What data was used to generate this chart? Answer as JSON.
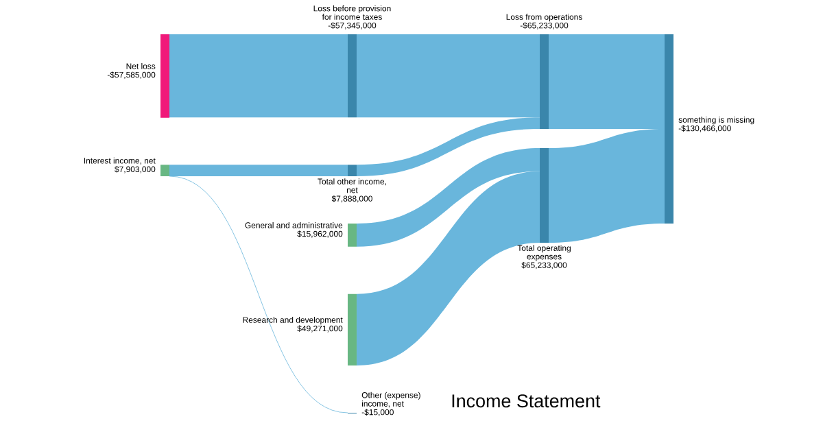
{
  "chart_data": {
    "type": "other",
    "title": "Income Statement",
    "categories": [
      "Net loss",
      "Interest income, net",
      "Loss before provision for income taxes",
      "Total other income, net",
      "General and administrative",
      "Research and development",
      "Other (expense) income, net",
      "Loss from operations",
      "Total operating expenses",
      "something is missing"
    ],
    "values": [
      -57585000,
      7903000,
      -57345000,
      7888000,
      15962000,
      49271000,
      -15000,
      -65233000,
      65233000,
      -130466000
    ],
    "value_labels": [
      "-$57,585,000",
      "$7,903,000",
      "-$57,345,000",
      "$7,888,000",
      "$15,962,000",
      "$49,271,000",
      "-$15,000",
      "-$65,233,000",
      "$65,233,000",
      "-$130,466,000"
    ],
    "colors": [
      "#f0197a",
      "#68b783",
      "#3a86ab",
      "#3a86ab",
      "#68b783",
      "#68b783",
      "#3a86ab",
      "#3a86ab",
      "#3a86ab",
      "#3a86ab"
    ],
    "series": [
      {
        "color": "#69b6dc",
        "values": [
          true,
          null,
          true,
          null,
          null,
          null,
          null,
          null,
          null,
          null
        ]
      },
      {
        "color": "#69b6dc",
        "values": [
          null,
          true,
          null,
          true,
          null,
          null,
          null,
          null,
          null,
          null
        ]
      },
      {
        "color": "#69b6dc",
        "values": [
          null,
          true,
          null,
          null,
          null,
          null,
          true,
          null,
          null,
          null
        ]
      },
      {
        "color": "#69b6dc",
        "values": [
          null,
          null,
          true,
          null,
          null,
          null,
          null,
          true,
          null,
          null
        ]
      },
      {
        "color": "#69b6dc",
        "values": [
          null,
          null,
          null,
          true,
          null,
          null,
          null,
          true,
          null,
          null
        ]
      },
      {
        "color": "#69b6dc",
        "values": [
          null,
          null,
          null,
          null,
          true,
          null,
          null,
          null,
          true,
          null
        ]
      },
      {
        "color": "#69b6dc",
        "values": [
          null,
          null,
          null,
          null,
          null,
          true,
          null,
          null,
          true,
          null
        ]
      },
      {
        "color": "#69b6dc",
        "values": [
          null,
          null,
          null,
          null,
          null,
          null,
          null,
          true,
          null,
          true
        ]
      },
      {
        "color": "#69b6dc",
        "values": [
          null,
          null,
          null,
          null,
          null,
          null,
          null,
          null,
          true,
          true
        ]
      }
    ]
  }
}
